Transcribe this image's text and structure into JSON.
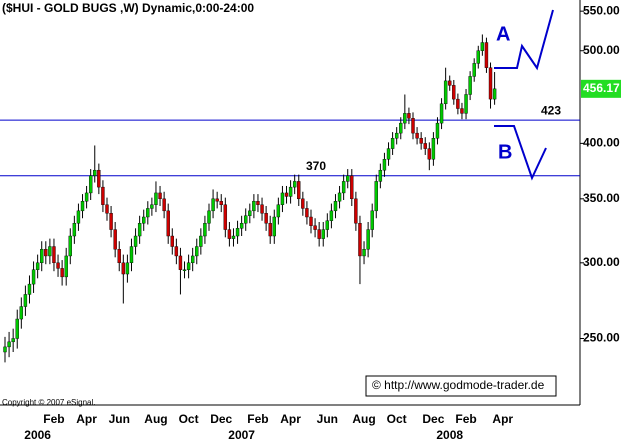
{
  "chart_data": {
    "type": "candlestick",
    "title": "($HUI - GOLD BUGS ,W) Dynamic,0:00-24:00",
    "copyright": "Copyright © 2007 eSignal.",
    "watermark": "© http://www.godmode-trader.de",
    "annotations": [
      "A",
      "B"
    ],
    "log_scale": true,
    "grid": false,
    "up_color": "#00c800",
    "down_color": "#cc0000",
    "line_color": "#0000cc",
    "hlines": [
      370,
      423
    ],
    "ylim": [
      213,
      565
    ],
    "yticks": [
      {
        "value": 250,
        "label": "250.00"
      },
      {
        "value": 300,
        "label": "300.00"
      },
      {
        "value": 350,
        "label": "350.00"
      },
      {
        "value": 400,
        "label": "400.00"
      },
      {
        "value": 500,
        "label": "500.00"
      },
      {
        "value": 550,
        "label": "550.00"
      }
    ],
    "categories": [
      null,
      null,
      null,
      null,
      null,
      null,
      null,
      null,
      null,
      null,
      null,
      null,
      "Feb",
      null,
      null,
      null,
      null,
      null,
      null,
      null,
      "Apr",
      null,
      null,
      null,
      null,
      null,
      null,
      null,
      "Jun",
      null,
      null,
      null,
      null,
      null,
      null,
      null,
      null,
      "Aug",
      null,
      null,
      null,
      null,
      null,
      null,
      null,
      "Oct",
      null,
      null,
      null,
      null,
      null,
      null,
      null,
      "Dec",
      null,
      null,
      null,
      null,
      null,
      null,
      null,
      null,
      "Feb",
      null,
      null,
      null,
      null,
      null,
      null,
      null,
      "Apr",
      null,
      null,
      null,
      null,
      null,
      null,
      null,
      null,
      "Jun",
      null,
      null,
      null,
      null,
      null,
      null,
      null,
      null,
      "Aug",
      null,
      null,
      null,
      null,
      null,
      null,
      null,
      "Oct",
      null,
      null,
      null,
      null,
      null,
      null,
      null,
      null,
      "Dec",
      null,
      null,
      null,
      null,
      null,
      null,
      null,
      "Feb",
      null,
      null,
      null,
      null,
      null,
      null,
      null,
      null,
      "Apr"
    ],
    "years": [
      null,
      null,
      null,
      null,
      null,
      null,
      null,
      null,
      "2006",
      null,
      null,
      null,
      null,
      null,
      null,
      null,
      null,
      null,
      null,
      null,
      null,
      null,
      null,
      null,
      null,
      null,
      null,
      null,
      null,
      null,
      null,
      null,
      null,
      null,
      null,
      null,
      null,
      null,
      null,
      null,
      null,
      null,
      null,
      null,
      null,
      null,
      null,
      null,
      null,
      null,
      null,
      null,
      null,
      null,
      null,
      null,
      null,
      null,
      "2007",
      null,
      null,
      null,
      null,
      null,
      null,
      null,
      null,
      null,
      null,
      null,
      null,
      null,
      null,
      null,
      null,
      null,
      null,
      null,
      null,
      null,
      null,
      null,
      null,
      null,
      null,
      null,
      null,
      null,
      null,
      null,
      null,
      null,
      null,
      null,
      null,
      null,
      null,
      null,
      null,
      null,
      null,
      null,
      null,
      null,
      null,
      null,
      null,
      null,
      null,
      "2008",
      null,
      null,
      null,
      null,
      null,
      null,
      null,
      null,
      null,
      null,
      null,
      null,
      null
    ],
    "open": [
      242,
      245,
      248,
      250,
      262,
      270,
      278,
      285,
      295,
      300,
      310,
      305,
      312,
      300,
      296,
      290,
      305,
      320,
      330,
      340,
      348,
      355,
      370,
      375,
      360,
      345,
      338,
      325,
      310,
      300,
      292,
      300,
      312,
      320,
      330,
      335,
      342,
      345,
      355,
      350,
      340,
      320,
      312,
      305,
      295,
      295,
      300,
      305,
      312,
      320,
      330,
      340,
      350,
      348,
      345,
      325,
      318,
      320,
      326,
      330,
      336,
      340,
      348,
      345,
      338,
      330,
      320,
      335,
      345,
      355,
      352,
      360,
      365,
      350,
      342,
      335,
      328,
      325,
      318,
      325,
      332,
      340,
      348,
      355,
      365,
      370,
      350,
      330,
      305,
      310,
      325,
      340,
      365,
      375,
      385,
      395,
      405,
      410,
      420,
      430,
      425,
      410,
      405,
      400,
      395,
      385,
      405,
      420,
      440,
      465,
      460,
      445,
      435,
      430,
      450,
      470,
      485,
      500,
      510,
      480,
      445,
      null,
      null
    ],
    "high": [
      251,
      254,
      256,
      268,
      276,
      284,
      291,
      301,
      306,
      316,
      316,
      318,
      318,
      306,
      302,
      311,
      326,
      336,
      346,
      354,
      361,
      376,
      398,
      381,
      366,
      351,
      344,
      331,
      316,
      306,
      306,
      318,
      326,
      336,
      341,
      348,
      351,
      365,
      361,
      356,
      346,
      326,
      318,
      311,
      301,
      306,
      311,
      318,
      326,
      336,
      346,
      358,
      356,
      354,
      351,
      331,
      326,
      332,
      336,
      342,
      346,
      354,
      354,
      351,
      344,
      336,
      341,
      351,
      361,
      361,
      366,
      371,
      371,
      356,
      348,
      341,
      334,
      331,
      331,
      338,
      346,
      354,
      361,
      371,
      376,
      376,
      356,
      336,
      316,
      331,
      346,
      371,
      381,
      391,
      401,
      411,
      416,
      426,
      450,
      436,
      431,
      416,
      411,
      406,
      401,
      411,
      426,
      446,
      480,
      471,
      466,
      451,
      441,
      456,
      476,
      491,
      506,
      520,
      516,
      486,
      475,
      null,
      null
    ],
    "low": [
      236,
      239,
      242,
      244,
      256,
      264,
      272,
      279,
      289,
      294,
      299,
      299,
      294,
      290,
      284,
      284,
      299,
      314,
      324,
      334,
      342,
      349,
      364,
      354,
      339,
      332,
      319,
      304,
      294,
      272,
      286,
      294,
      306,
      314,
      324,
      329,
      336,
      339,
      344,
      334,
      314,
      306,
      299,
      278,
      289,
      289,
      294,
      299,
      306,
      314,
      324,
      334,
      342,
      339,
      319,
      312,
      312,
      314,
      320,
      324,
      330,
      334,
      339,
      332,
      324,
      314,
      314,
      329,
      339,
      346,
      346,
      354,
      344,
      336,
      329,
      322,
      319,
      312,
      312,
      319,
      326,
      334,
      342,
      349,
      359,
      344,
      324,
      285,
      299,
      304,
      319,
      334,
      359,
      369,
      379,
      389,
      399,
      404,
      414,
      419,
      404,
      399,
      394,
      389,
      375,
      379,
      399,
      414,
      434,
      454,
      439,
      429,
      424,
      424,
      444,
      464,
      479,
      494,
      474,
      435,
      439,
      null,
      null
    ],
    "close": [
      245,
      248,
      250,
      262,
      270,
      278,
      285,
      295,
      300,
      310,
      305,
      312,
      300,
      296,
      290,
      305,
      320,
      330,
      340,
      348,
      355,
      370,
      375,
      360,
      345,
      338,
      325,
      310,
      300,
      292,
      300,
      312,
      320,
      330,
      335,
      342,
      345,
      355,
      350,
      340,
      320,
      312,
      305,
      295,
      295,
      300,
      305,
      312,
      320,
      330,
      340,
      350,
      348,
      345,
      325,
      318,
      320,
      326,
      330,
      336,
      340,
      348,
      345,
      338,
      330,
      320,
      335,
      345,
      355,
      352,
      360,
      365,
      350,
      342,
      335,
      328,
      325,
      318,
      325,
      332,
      340,
      348,
      355,
      365,
      370,
      350,
      330,
      305,
      310,
      325,
      340,
      365,
      375,
      385,
      395,
      405,
      410,
      420,
      430,
      425,
      410,
      405,
      400,
      395,
      385,
      405,
      420,
      440,
      465,
      460,
      445,
      435,
      430,
      450,
      470,
      485,
      500,
      510,
      480,
      445,
      456.17,
      null,
      null
    ]
  }
}
